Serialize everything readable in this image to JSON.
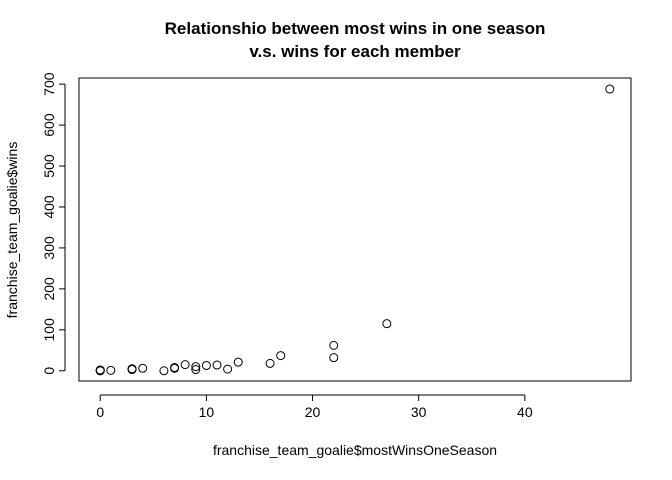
{
  "chart_data": {
    "type": "scatter",
    "title_lines": [
      "Relationshio between most wins in one season",
      "v.s. wins for each member"
    ],
    "xlabel": "franchise_team_goalie$mostWinsOneSeason",
    "ylabel": "franchise_team_goalie$wins",
    "xlim": [
      -2,
      50
    ],
    "ylim": [
      -25,
      715
    ],
    "x_ticks": [
      0,
      10,
      20,
      30,
      40
    ],
    "y_ticks": [
      0,
      100,
      200,
      300,
      400,
      500,
      600,
      700
    ],
    "grid": false,
    "legend": null,
    "marker": "open-circle",
    "x": [
      0,
      0,
      0,
      0,
      1,
      3,
      3,
      3,
      4,
      6,
      7,
      7,
      8,
      9,
      9,
      10,
      11,
      12,
      13,
      16,
      17,
      22,
      22,
      27,
      48
    ],
    "y": [
      0,
      1,
      2,
      0,
      1,
      3,
      5,
      4,
      6,
      0,
      8,
      6,
      15,
      10,
      3,
      13,
      14,
      4,
      21,
      18,
      37,
      32,
      62,
      115,
      688
    ]
  }
}
